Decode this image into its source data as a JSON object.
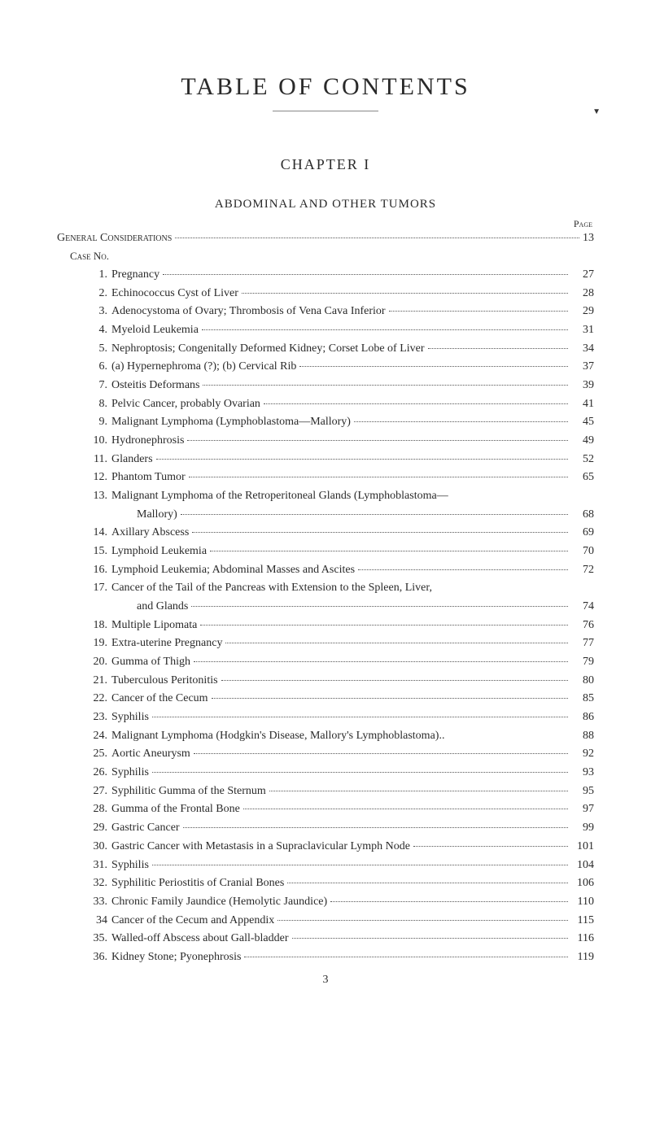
{
  "title": "TABLE OF CONTENTS",
  "chapter": "CHAPTER I",
  "subtitle": "ABDOMINAL AND OTHER TUMORS",
  "page_label": "Page",
  "section_header": {
    "text": "General Considerations",
    "page": "13"
  },
  "case_label": "Case No.",
  "footer_page": "3",
  "entries": [
    {
      "no": "1.",
      "text": "Pregnancy",
      "page": "27"
    },
    {
      "no": "2.",
      "text": "Echinococcus Cyst of Liver",
      "page": "28"
    },
    {
      "no": "3.",
      "text": "Adenocystoma of Ovary; Thrombosis of Vena Cava Inferior",
      "page": "29"
    },
    {
      "no": "4.",
      "text": "Myeloid Leukemia",
      "page": "31"
    },
    {
      "no": "5.",
      "text": "Nephroptosis; Congenitally Deformed Kidney; Corset Lobe of Liver",
      "page": "34"
    },
    {
      "no": "6.",
      "text": "(a) Hypernephroma (?); (b) Cervical Rib",
      "page": "37"
    },
    {
      "no": "7.",
      "text": "Osteitis Deformans",
      "page": "39"
    },
    {
      "no": "8.",
      "text": "Pelvic Cancer, probably Ovarian",
      "page": "41"
    },
    {
      "no": "9.",
      "text": "Malignant Lymphoma (Lymphoblastoma—Mallory)",
      "page": "45"
    },
    {
      "no": "10.",
      "text": "Hydronephrosis",
      "page": "49"
    },
    {
      "no": "11.",
      "text": "Glanders",
      "page": "52"
    },
    {
      "no": "12.",
      "text": "Phantom Tumor",
      "page": "65"
    },
    {
      "no": "13.",
      "text": "Malignant Lymphoma of the Retroperitoneal Glands (Lymphoblastoma—",
      "continuation": "Mallory)",
      "page": "68"
    },
    {
      "no": "14.",
      "text": "Axillary Abscess",
      "page": "69"
    },
    {
      "no": "15.",
      "text": "Lymphoid Leukemia",
      "page": "70"
    },
    {
      "no": "16.",
      "text": "Lymphoid Leukemia; Abdominal Masses and Ascites",
      "page": "72"
    },
    {
      "no": "17.",
      "text": "Cancer of the Tail of the Pancreas with Extension to the Spleen, Liver,",
      "continuation": "and Glands",
      "page": "74"
    },
    {
      "no": "18.",
      "text": "Multiple Lipomata",
      "page": "76"
    },
    {
      "no": "19.",
      "text": "Extra-uterine Pregnancy",
      "page": "77"
    },
    {
      "no": "20.",
      "text": "Gumma of Thigh",
      "page": "79"
    },
    {
      "no": "21.",
      "text": "Tuberculous Peritonitis",
      "page": "80"
    },
    {
      "no": "22.",
      "text": "Cancer of the Cecum",
      "page": "85"
    },
    {
      "no": "23.",
      "text": "Syphilis",
      "page": "86"
    },
    {
      "no": "24.",
      "text": "Malignant Lymphoma (Hodgkin's Disease, Mallory's Lymphoblastoma)..",
      "page": "88",
      "no_dots": true
    },
    {
      "no": "25.",
      "text": "Aortic Aneurysm",
      "page": "92"
    },
    {
      "no": "26.",
      "text": "Syphilis",
      "page": "93"
    },
    {
      "no": "27.",
      "text": "Syphilitic Gumma of the Sternum",
      "page": "95"
    },
    {
      "no": "28.",
      "text": "Gumma of the Frontal Bone",
      "page": "97"
    },
    {
      "no": "29.",
      "text": "Gastric Cancer",
      "page": "99"
    },
    {
      "no": "30.",
      "text": "Gastric Cancer with Metastasis in a Supraclavicular Lymph Node",
      "page": "101"
    },
    {
      "no": "31.",
      "text": "Syphilis",
      "page": "104"
    },
    {
      "no": "32.",
      "text": "Syphilitic Periostitis of Cranial Bones",
      "page": "106"
    },
    {
      "no": "33.",
      "text": "Chronic Family Jaundice (Hemolytic Jaundice)",
      "page": "110"
    },
    {
      "no": "34",
      "text": "Cancer of the Cecum and Appendix",
      "page": "115"
    },
    {
      "no": "35.",
      "text": "Walled-off Abscess about Gall-bladder",
      "page": "116"
    },
    {
      "no": "36.",
      "text": "Kidney Stone; Pyonephrosis",
      "page": "119"
    }
  ]
}
